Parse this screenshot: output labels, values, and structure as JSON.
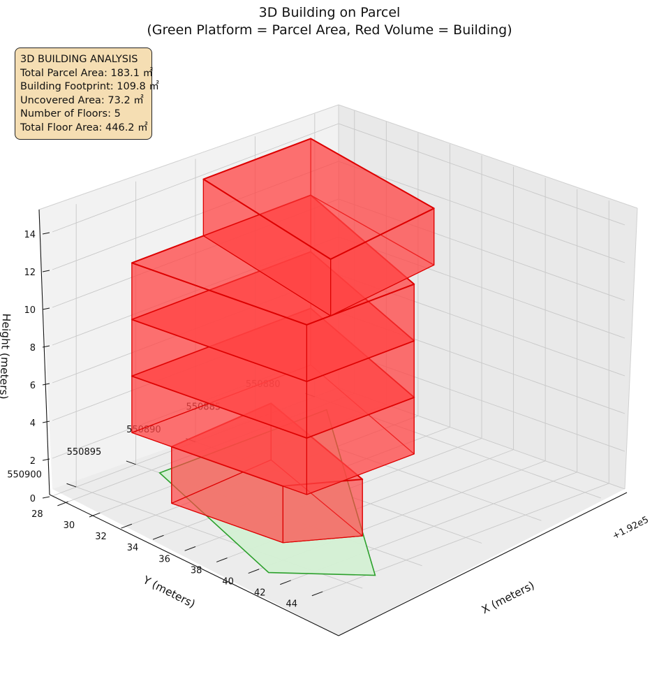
{
  "title": {
    "line1": "3D Building on Parcel",
    "line2": "(Green Platform = Parcel Area, Red Volume = Building)"
  },
  "info_box": {
    "heading": "3D BUILDING ANALYSIS",
    "parcel_area": "Total Parcel Area: 183.1 ㎡",
    "footprint": "Building Footprint: 109.8 ㎡",
    "uncovered": "Uncovered Area: 73.2 ㎡",
    "floors": "Number of Floors: 5",
    "floor_area": "Total Floor Area: 446.2 ㎡"
  },
  "colors": {
    "parcel_fill": "#d4f0d4",
    "parcel_edge": "#2ca02c",
    "building_fill": "#ff4444",
    "building_edge": "#dd0000",
    "info_bg": "#f5deb3"
  },
  "chart_data": {
    "type": "3d-surface",
    "xlabel": "X (meters)",
    "ylabel": "Y (meters)",
    "zlabel": "Height (meters)",
    "x_offset_label": "+1.92e5",
    "x_ticks": [
      "28",
      "30",
      "32",
      "34",
      "36",
      "38",
      "40",
      "42",
      "44"
    ],
    "y_ticks": [
      "550880",
      "550885",
      "550890",
      "550895",
      "550900"
    ],
    "z_ticks": [
      "0",
      "2",
      "4",
      "6",
      "8",
      "10",
      "12",
      "14"
    ],
    "xlim": [
      27,
      45
    ],
    "ylim": [
      550878,
      550902
    ],
    "zlim": [
      0,
      15
    ],
    "grid": true,
    "parcel": {
      "name": "Parcel Area",
      "polygon": [
        [
          28.5,
          550881
        ],
        [
          44.3,
          550898
        ],
        [
          40.6,
          550902
        ],
        [
          28.5,
          550895
        ]
      ],
      "z": 0
    },
    "building_floors": [
      {
        "floor": 1,
        "z": [
          0,
          3
        ],
        "footprint": [
          [
            31,
            550889
          ],
          [
            40.5,
            550894
          ],
          [
            38.5,
            550898
          ],
          [
            31.5,
            550898
          ]
        ]
      },
      {
        "floor": 2,
        "z": [
          3,
          6
        ],
        "footprint": [
          [
            29,
            550883
          ],
          [
            40,
            550889
          ],
          [
            40,
            550898
          ],
          [
            29,
            550898
          ]
        ]
      },
      {
        "floor": 3,
        "z": [
          6,
          9
        ],
        "footprint": [
          [
            29,
            550883
          ],
          [
            40,
            550889
          ],
          [
            40,
            550898
          ],
          [
            29,
            550898
          ]
        ]
      },
      {
        "floor": 4,
        "z": [
          9,
          12
        ],
        "footprint": [
          [
            29,
            550883
          ],
          [
            40,
            550889
          ],
          [
            40,
            550898
          ],
          [
            29,
            550898
          ]
        ]
      },
      {
        "floor": 5,
        "z": [
          12,
          15
        ],
        "footprint": [
          [
            29,
            550883
          ],
          [
            39,
            550886
          ],
          [
            40,
            550896
          ],
          [
            29,
            550892
          ]
        ]
      }
    ]
  }
}
